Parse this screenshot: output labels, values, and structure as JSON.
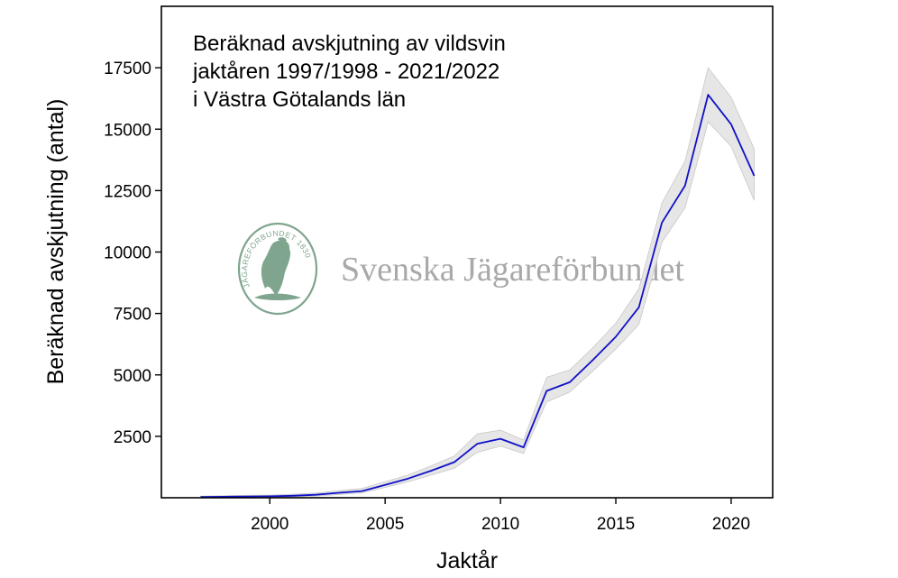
{
  "watermark": {
    "text": "Svenska Jägareförbundet",
    "seal_text": "JÄGAREFÖRBUNDET 1830",
    "seal_color": "#7fa58e",
    "seal_icon": "eagle-icon"
  },
  "chart_data": {
    "type": "line",
    "title_lines": [
      "Beräknad avskjutning av vildsvin",
      "jaktåren 1997/1998 - 2021/2022",
      "i Västra Götalands län"
    ],
    "xlabel": "Jaktår",
    "ylabel": "Beräknad avskjutning (antal)",
    "xlim": [
      1995.3,
      2021.8
    ],
    "ylim": [
      0,
      20000
    ],
    "x_ticks": [
      2000,
      2005,
      2010,
      2015,
      2020
    ],
    "y_ticks": [
      2500,
      5000,
      7500,
      10000,
      12500,
      15000,
      17500
    ],
    "grid": false,
    "line_color": "#1010c8",
    "band_color": "#e6e6e6",
    "series": [
      {
        "x": [
          1997,
          1998,
          1999,
          2000,
          2001,
          2002,
          2003,
          2004,
          2005,
          2006,
          2007,
          2008,
          2009,
          2010,
          2011,
          2012,
          2013,
          2014,
          2015,
          2016,
          2017,
          2018,
          2019,
          2020,
          2021
        ],
        "y": [
          30,
          40,
          50,
          60,
          80,
          120,
          200,
          270,
          520,
          780,
          1100,
          1450,
          2200,
          2400,
          2050,
          4350,
          4700,
          5600,
          6550,
          7750,
          11200,
          12700,
          16400,
          15200,
          13100
        ],
        "lower": [
          0,
          10,
          20,
          25,
          40,
          70,
          130,
          200,
          420,
          650,
          920,
          1200,
          1850,
          2100,
          1800,
          3900,
          4300,
          5150,
          6050,
          7050,
          10400,
          11800,
          15300,
          14300,
          12100
        ],
        "upper": [
          70,
          80,
          100,
          110,
          140,
          190,
          290,
          380,
          650,
          930,
          1300,
          1700,
          2600,
          2750,
          2350,
          4900,
          5200,
          6100,
          7100,
          8500,
          12000,
          13700,
          17500,
          16300,
          14200
        ]
      }
    ]
  }
}
